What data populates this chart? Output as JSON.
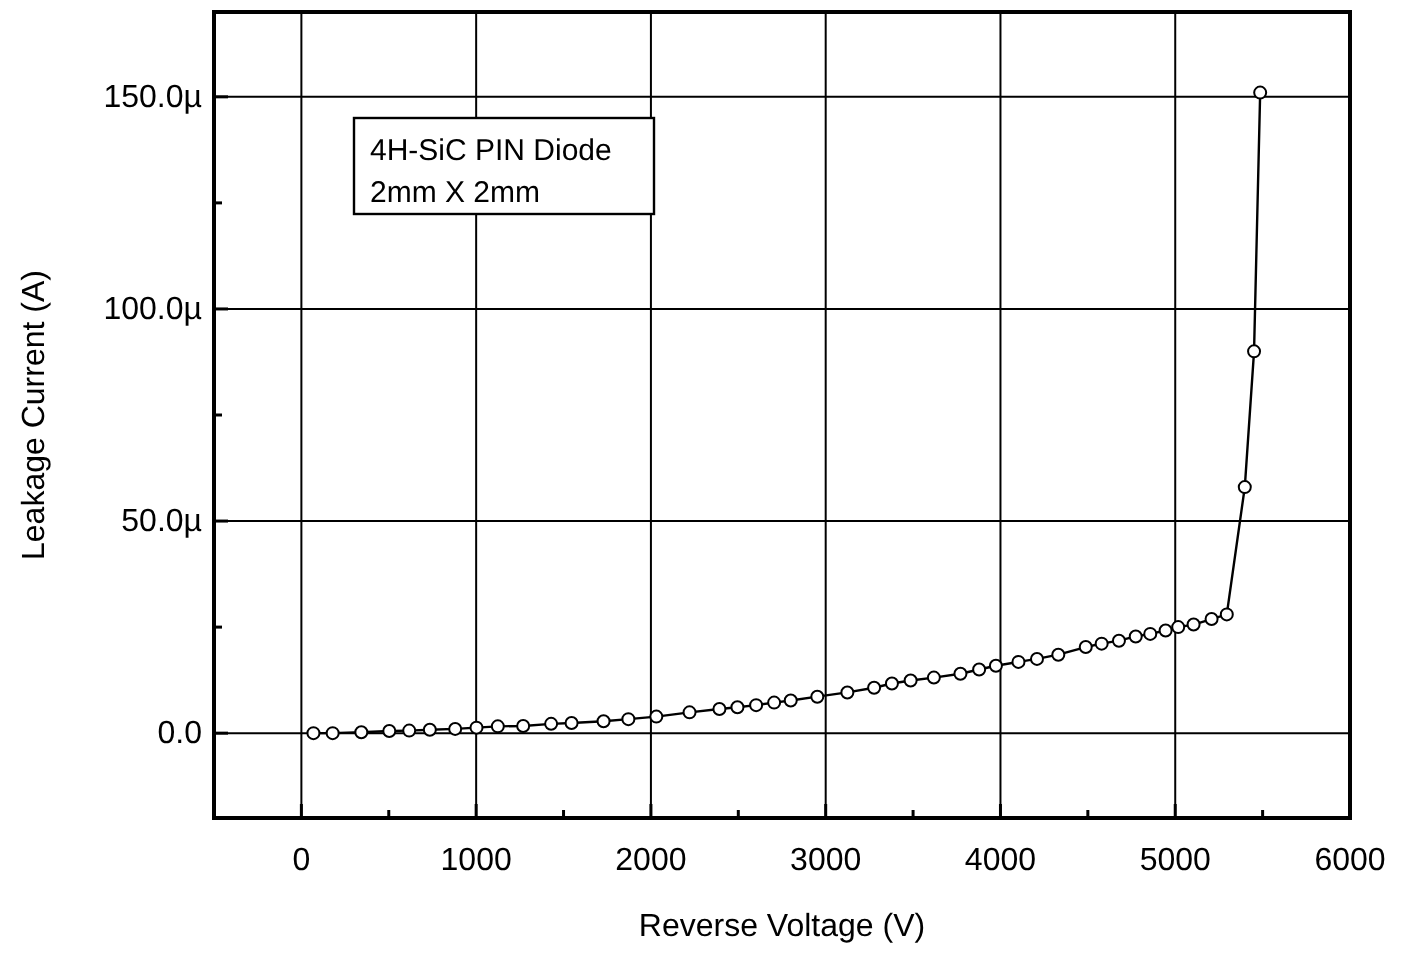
{
  "chart_data": {
    "type": "line",
    "xlabel": "Reverse Voltage (V)",
    "ylabel": "Leakage Current (A)",
    "annotations": [
      "4H-SiC PIN Diode",
      "2mm X 2mm"
    ],
    "x": [
      69,
      179,
      343,
      503,
      617,
      735,
      880,
      1002,
      1124,
      1269,
      1429,
      1546,
      1729,
      1871,
      2031,
      2221,
      2392,
      2495,
      2602,
      2705,
      2800,
      2952,
      3124,
      3277,
      3379,
      3486,
      3619,
      3771,
      3878,
      3974,
      4103,
      4209,
      4331,
      4488,
      4579,
      4678,
      4774,
      4857,
      4945,
      5017,
      5105,
      5208,
      5295,
      5398,
      5451,
      5486
    ],
    "series": [
      {
        "color": "#000000",
        "values": [
          0,
          0,
          0.2,
          0.5,
          0.6,
          0.8,
          1.0,
          1.3,
          1.6,
          1.7,
          2.2,
          2.4,
          2.8,
          3.3,
          3.9,
          4.9,
          5.7,
          6.1,
          6.6,
          7.2,
          7.7,
          8.6,
          9.6,
          10.7,
          11.7,
          12.4,
          13.1,
          14,
          15,
          15.9,
          16.8,
          17.5,
          18.5,
          20.3,
          21.1,
          21.8,
          22.8,
          23.4,
          24.2,
          25,
          25.6,
          26.9,
          28,
          58,
          90,
          151
        ]
      }
    ],
    "xlim": [
      -500,
      6000
    ],
    "ylim": [
      -20,
      170
    ],
    "xticks": [
      0,
      {
        "value": 500,
        "label": null
      },
      1000,
      {
        "value": 1500,
        "label": null
      },
      2000,
      {
        "value": 2500,
        "label": null
      },
      3000,
      {
        "value": 3500,
        "label": null
      },
      4000,
      {
        "value": 4500,
        "label": null
      },
      5000,
      {
        "value": 5500,
        "label": null
      },
      6000
    ],
    "yticks": [
      {
        "value": 0,
        "label": "0.0"
      },
      {
        "value": 25,
        "label": null
      },
      {
        "value": 50,
        "label": "50.0µ"
      },
      {
        "value": 75,
        "label": null
      },
      {
        "value": 100,
        "label": "100.0µ"
      },
      {
        "value": 125,
        "label": null
      },
      {
        "value": 150,
        "label": "150.0µ"
      }
    ],
    "grid": true,
    "marker": "circle",
    "line_style": "solid"
  }
}
